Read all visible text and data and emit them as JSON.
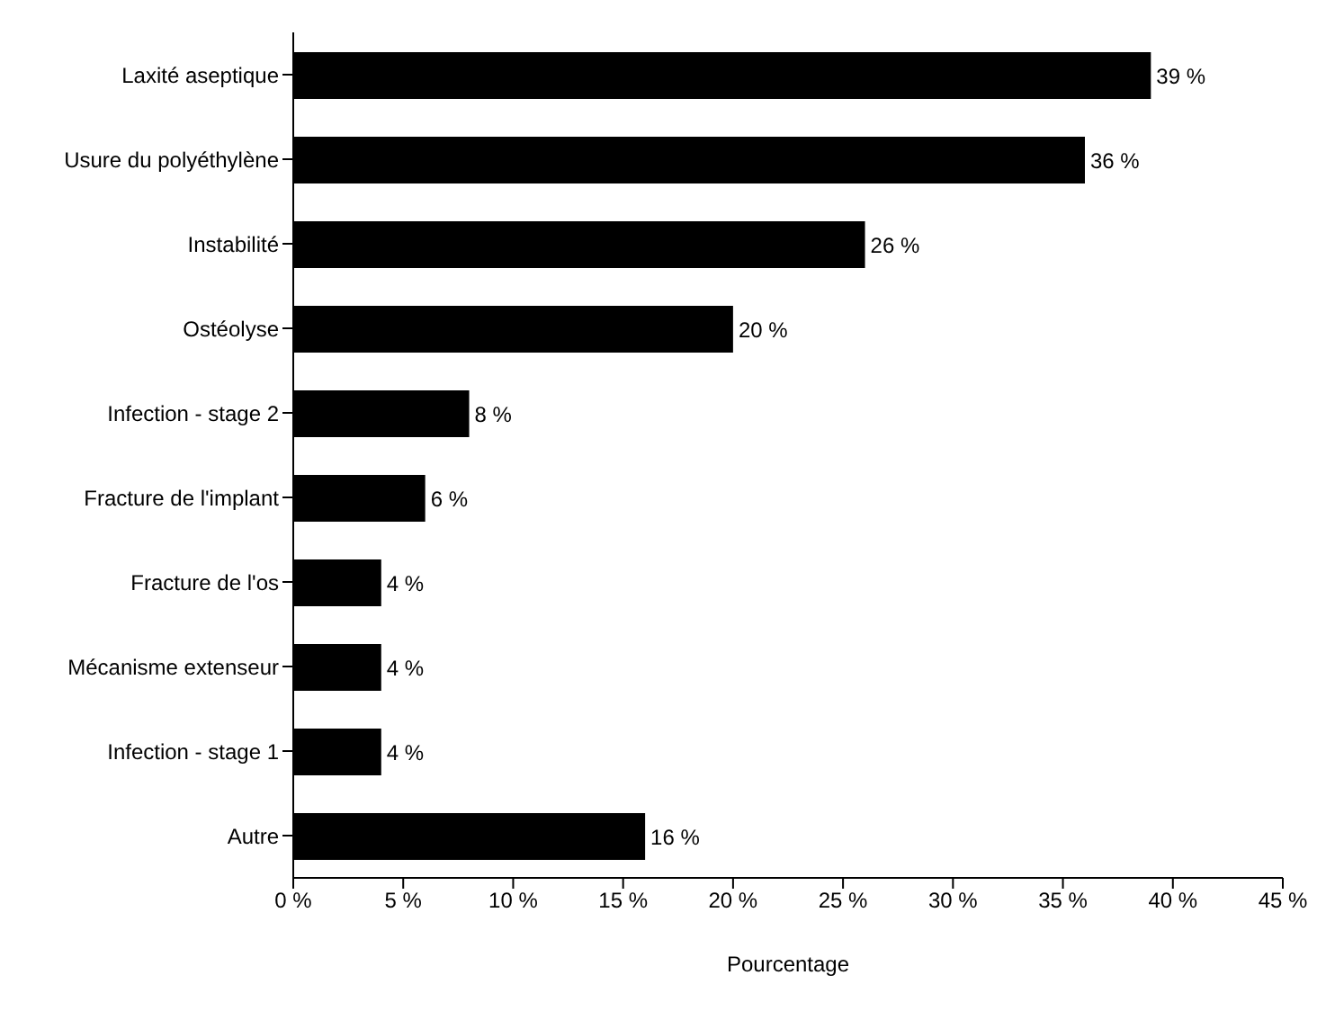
{
  "chart_data": {
    "type": "bar",
    "orientation": "horizontal",
    "xlabel": "Pourcentage",
    "categories": [
      "Laxité aseptique",
      "Usure du polyéthylène",
      "Instabilité",
      "Ostéolyse",
      "Infection - stage 2",
      "Fracture de l'implant",
      "Fracture de l'os",
      "Mécanisme extenseur",
      "Infection - stage 1",
      "Autre"
    ],
    "values": [
      39,
      36,
      26,
      20,
      8,
      6,
      4,
      4,
      4,
      16
    ],
    "value_labels": [
      "39 %",
      "36 %",
      "26 %",
      "20 %",
      "8 %",
      "6 %",
      "4 %",
      "4 %",
      "4 %",
      "16 %"
    ],
    "color": "#000000",
    "xlim": [
      0,
      45
    ],
    "xticks": [
      {
        "value": 0,
        "label": "0 %"
      },
      {
        "value": 5,
        "label": "5 %"
      },
      {
        "value": 10,
        "label": "10 %"
      },
      {
        "value": 15,
        "label": "15 %"
      },
      {
        "value": 20,
        "label": "20 %"
      },
      {
        "value": 25,
        "label": "25 %"
      },
      {
        "value": 30,
        "label": "30 %"
      },
      {
        "value": 35,
        "label": "35 %"
      },
      {
        "value": 40,
        "label": "40 %"
      },
      {
        "value": 45,
        "label": "45 %"
      }
    ],
    "grid": false,
    "legend": false
  }
}
